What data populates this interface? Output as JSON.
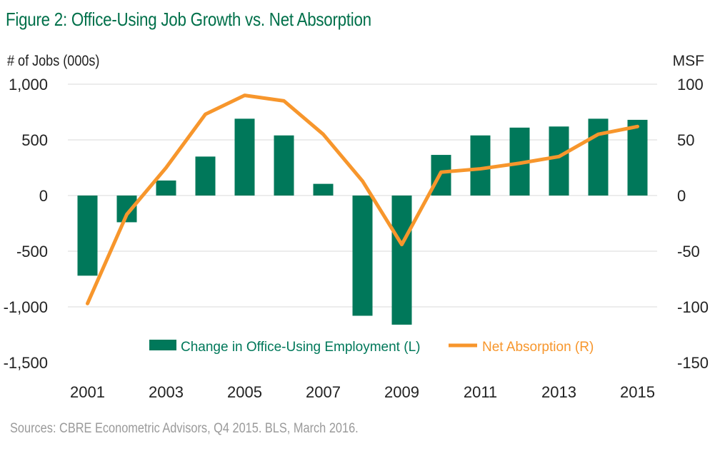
{
  "title": "Figure 2: Office-Using Job Growth vs. Net Absorption",
  "source": "Sources: CBRE Econometric Advisors, Q4 2015. BLS, March 2016.",
  "colors": {
    "title": "#00704a",
    "bar": "#00785a",
    "line": "#f7962c",
    "grid": "#d9d9d9",
    "source": "#9a9a9a"
  },
  "chart_data": {
    "type": "bar+line",
    "x": [
      2001,
      2002,
      2003,
      2004,
      2005,
      2006,
      2007,
      2008,
      2009,
      2010,
      2011,
      2012,
      2013,
      2014,
      2015
    ],
    "x_tick_labels": [
      "2001",
      "2003",
      "2005",
      "2007",
      "2009",
      "2011",
      "2013",
      "2015"
    ],
    "ylabel_left": "# of Jobs (000s)",
    "ylabel_right": "MSF",
    "ylim_left": [
      -1500,
      1000
    ],
    "ylim_right": [
      -150,
      100
    ],
    "yticks_left": [
      "1,000",
      "500",
      "0",
      "-500",
      "-1,000",
      "-1,500"
    ],
    "yticks_right": [
      "100",
      "50",
      "0",
      "-50",
      "-100",
      "-150"
    ],
    "grid": true,
    "legend_position": "bottom-center",
    "series": [
      {
        "name": "Change in Office-Using Employment (L)",
        "type": "bar",
        "axis": "left",
        "values": [
          -720,
          -240,
          135,
          350,
          690,
          540,
          105,
          -1080,
          -1160,
          365,
          540,
          610,
          620,
          690,
          680
        ]
      },
      {
        "name": "Net Absorption (R)",
        "type": "line",
        "axis": "right",
        "values": [
          -97,
          -17,
          25,
          73,
          90,
          85,
          55,
          13,
          -44,
          21,
          24,
          29,
          35,
          55,
          62
        ]
      }
    ]
  }
}
